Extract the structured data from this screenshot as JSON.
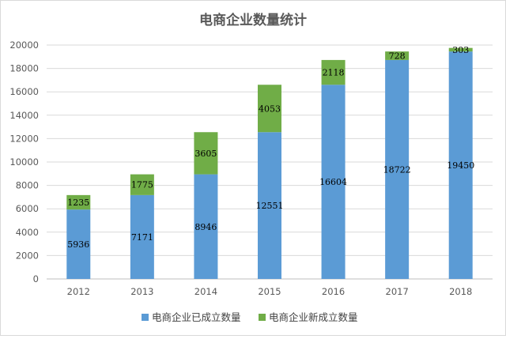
{
  "chart_data": {
    "type": "bar",
    "stacked": true,
    "title": "电商企业数量统计",
    "categories": [
      "2012",
      "2013",
      "2014",
      "2015",
      "2016",
      "2017",
      "2018"
    ],
    "series": [
      {
        "name": "电商企业已成立数量",
        "values": [
          5936,
          7171,
          8946,
          12551,
          16604,
          18722,
          19450
        ],
        "color": "#5b9bd5"
      },
      {
        "name": "电商企业新成立数量",
        "values": [
          1235,
          1775,
          3605,
          4053,
          2118,
          728,
          303
        ],
        "color": "#70ad47"
      }
    ],
    "ylim": [
      0,
      20000
    ],
    "yticks": [
      0,
      2000,
      4000,
      6000,
      8000,
      10000,
      12000,
      14000,
      16000,
      18000,
      20000
    ],
    "grid": true,
    "legend_position": "bottom"
  }
}
